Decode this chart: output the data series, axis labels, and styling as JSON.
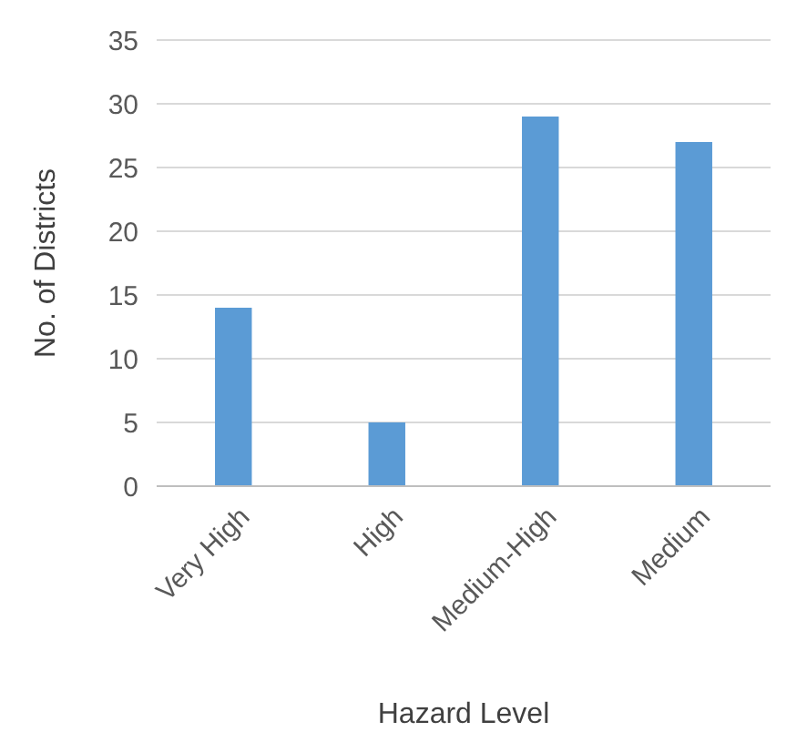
{
  "chart_data": {
    "type": "bar",
    "xlabel": "Hazard Level",
    "ylabel": "No. of Districts",
    "categories": [
      "Very High",
      "High",
      "Medium-High",
      "Medium"
    ],
    "values": [
      14,
      5,
      29,
      27
    ],
    "color": "#5b9bd5",
    "ylim": [
      0,
      35
    ],
    "yticks": [
      0,
      5,
      10,
      15,
      20,
      25,
      30,
      35
    ],
    "grid": "y"
  }
}
